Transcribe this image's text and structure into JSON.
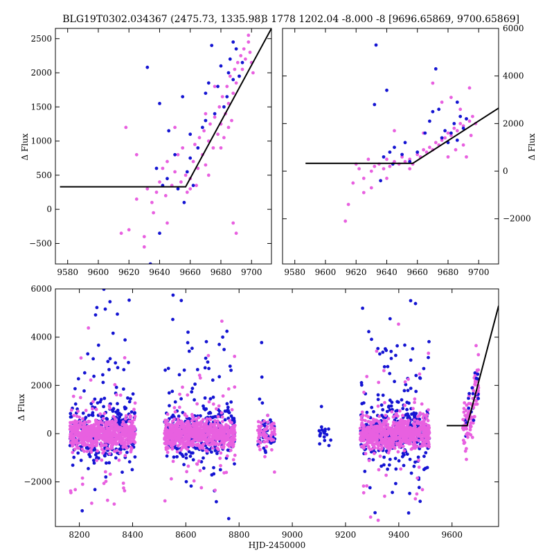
{
  "chart_data": [
    {
      "id": "zoom_left",
      "type": "scatter",
      "title": "BLG19T0302.034367 (2475.73, 1335.98)",
      "xlabel": "",
      "ylabel": "Δ Flux",
      "xlim": [
        9572,
        9713
      ],
      "ylim": [
        -800,
        2650
      ],
      "xticks": [
        9580,
        9600,
        9620,
        9640,
        9660,
        9680,
        9700
      ],
      "yticks": [
        -500,
        0,
        500,
        1000,
        1500,
        2000,
        2500
      ],
      "ytick_side": "left",
      "model_line": {
        "x": [
          9575,
          9657,
          9713
        ],
        "y": [
          330,
          330,
          2650
        ],
        "color": "#000000"
      },
      "series": [
        {
          "color": "#e860e0",
          "values": [
            [
              9620,
              -300
            ],
            [
              9625,
              150
            ],
            [
              9630,
              -400
            ],
            [
              9632,
              300
            ],
            [
              9635,
              100
            ],
            [
              9636,
              -50
            ],
            [
              9638,
              250
            ],
            [
              9640,
              400
            ],
            [
              9642,
              600
            ],
            [
              9644,
              200
            ],
            [
              9645,
              700
            ],
            [
              9648,
              350
            ],
            [
              9650,
              550
            ],
            [
              9652,
              800
            ],
            [
              9654,
              400
            ],
            [
              9655,
              900
            ],
            [
              9657,
              500
            ],
            [
              9658,
              250
            ],
            [
              9660,
              450
            ],
            [
              9662,
              700
            ],
            [
              9663,
              950
            ],
            [
              9665,
              600
            ],
            [
              9666,
              1050
            ],
            [
              9668,
              800
            ],
            [
              9669,
              1150
            ],
            [
              9670,
              650
            ],
            [
              9672,
              1000
            ],
            [
              9673,
              1250
            ],
            [
              9675,
              900
            ],
            [
              9676,
              1350
            ],
            [
              9678,
              1100
            ],
            [
              9679,
              1500
            ],
            [
              9680,
              1250
            ],
            [
              9681,
              1650
            ],
            [
              9683,
              1400
            ],
            [
              9684,
              1800
            ],
            [
              9685,
              1550
            ],
            [
              9686,
              1950
            ],
            [
              9688,
              1700
            ],
            [
              9689,
              2050
            ],
            [
              9690,
              1850
            ],
            [
              9691,
              2150
            ],
            [
              9692,
              1950
            ],
            [
              9693,
              2250
            ],
            [
              9694,
              2050
            ],
            [
              9695,
              2350
            ],
            [
              9696,
              2200
            ],
            [
              9698,
              2450
            ],
            [
              9699,
              2300
            ],
            [
              9700,
              2150
            ],
            [
              9701,
              2000
            ],
            [
              9685,
              1200
            ],
            [
              9680,
              900
            ],
            [
              9670,
              1400
            ],
            [
              9660,
              300
            ],
            [
              9645,
              -200
            ],
            [
              9630,
              -550
            ],
            [
              9688,
              -200
            ],
            [
              9690,
              -350
            ],
            [
              9615,
              -350
            ],
            [
              9618,
              1200
            ],
            [
              9625,
              800
            ],
            [
              9650,
              1200
            ],
            [
              9676,
              1800
            ],
            [
              9698,
              2550
            ],
            [
              9664,
              350
            ],
            [
              9672,
              500
            ],
            [
              9682,
              1050
            ],
            [
              9687,
              1300
            ]
          ]
        },
        {
          "color": "#1414d2",
          "values": [
            [
              9632,
              2080
            ],
            [
              9640,
              1550
            ],
            [
              9634,
              -800
            ],
            [
              9638,
              600
            ],
            [
              9642,
              350
            ],
            [
              9646,
              1150
            ],
            [
              9650,
              800
            ],
            [
              9652,
              300
            ],
            [
              9655,
              1650
            ],
            [
              9658,
              550
            ],
            [
              9660,
              1100
            ],
            [
              9662,
              350
            ],
            [
              9665,
              900
            ],
            [
              9668,
              1200
            ],
            [
              9670,
              1700
            ],
            [
              9672,
              1850
            ],
            [
              9674,
              2400
            ],
            [
              9676,
              1400
            ],
            [
              9678,
              1800
            ],
            [
              9680,
              2100
            ],
            [
              9682,
              1500
            ],
            [
              9684,
              1650
            ],
            [
              9686,
              2200
            ],
            [
              9688,
              2450
            ],
            [
              9690,
              2350
            ],
            [
              9692,
              1950
            ],
            [
              9694,
              2150
            ],
            [
              9640,
              -350
            ],
            [
              9656,
              100
            ],
            [
              9645,
              450
            ],
            [
              9660,
              750
            ],
            [
              9670,
              1300
            ],
            [
              9685,
              2000
            ],
            [
              9688,
              1900
            ]
          ]
        }
      ]
    },
    {
      "id": "zoom_right",
      "type": "scatter",
      "title": "3 1778 1202.04 -8.000 -8 [9696.65869, 9700.65869]",
      "xlabel": "",
      "ylabel": "Δ Flux",
      "xlim": [
        9572,
        9713
      ],
      "ylim": [
        -3900,
        6000
      ],
      "xticks": [
        9580,
        9600,
        9620,
        9640,
        9660,
        9680,
        9700
      ],
      "yticks": [
        -2000,
        0,
        2000,
        4000,
        6000
      ],
      "ytick_side": "right",
      "model_line": {
        "x": [
          9587,
          9657,
          9713
        ],
        "y": [
          330,
          330,
          2650
        ],
        "color": "#000000"
      },
      "series": [
        {
          "color": "#e860e0",
          "values": [
            [
              9613,
              -2100
            ],
            [
              9615,
              -1400
            ],
            [
              9618,
              -500
            ],
            [
              9620,
              300
            ],
            [
              9622,
              100
            ],
            [
              9625,
              -300
            ],
            [
              9628,
              500
            ],
            [
              9630,
              0
            ],
            [
              9632,
              200
            ],
            [
              9635,
              300
            ],
            [
              9638,
              100
            ],
            [
              9640,
              500
            ],
            [
              9642,
              200
            ],
            [
              9645,
              400
            ],
            [
              9648,
              300
            ],
            [
              9650,
              600
            ],
            [
              9652,
              400
            ],
            [
              9655,
              500
            ],
            [
              9657,
              300
            ],
            [
              9660,
              700
            ],
            [
              9662,
              600
            ],
            [
              9664,
              900
            ],
            [
              9666,
              800
            ],
            [
              9668,
              1000
            ],
            [
              9670,
              900
            ],
            [
              9672,
              1200
            ],
            [
              9674,
              1100
            ],
            [
              9676,
              1300
            ],
            [
              9678,
              1400
            ],
            [
              9680,
              1600
            ],
            [
              9682,
              1500
            ],
            [
              9684,
              1800
            ],
            [
              9686,
              1700
            ],
            [
              9688,
              2000
            ],
            [
              9690,
              1900
            ],
            [
              9692,
              2200
            ],
            [
              9694,
              2100
            ],
            [
              9696,
              2300
            ],
            [
              9698,
              2000
            ],
            [
              9685,
              900
            ],
            [
              9680,
              600
            ],
            [
              9690,
              1100
            ],
            [
              9695,
              1500
            ],
            [
              9688,
              2600
            ],
            [
              9682,
              3100
            ],
            [
              9676,
              2900
            ],
            [
              9670,
              3700
            ],
            [
              9664,
              1600
            ],
            [
              9645,
              1700
            ],
            [
              9630,
              -700
            ],
            [
              9625,
              -900
            ],
            [
              9694,
              3500
            ],
            [
              9640,
              -300
            ],
            [
              9655,
              100
            ],
            [
              9692,
              600
            ]
          ]
        },
        {
          "color": "#1414d2",
          "values": [
            [
              9633,
              5300
            ],
            [
              9640,
              3400
            ],
            [
              9632,
              2800
            ],
            [
              9638,
              600
            ],
            [
              9642,
              800
            ],
            [
              9645,
              1000
            ],
            [
              9650,
              700
            ],
            [
              9652,
              1200
            ],
            [
              9655,
              400
            ],
            [
              9660,
              800
            ],
            [
              9665,
              1600
            ],
            [
              9668,
              2100
            ],
            [
              9672,
              4300
            ],
            [
              9674,
              2600
            ],
            [
              9676,
              1400
            ],
            [
              9678,
              1700
            ],
            [
              9680,
              1200
            ],
            [
              9682,
              1600
            ],
            [
              9684,
              2000
            ],
            [
              9686,
              1300
            ],
            [
              9688,
              2300
            ],
            [
              9690,
              1800
            ],
            [
              9692,
              2200
            ],
            [
              9636,
              -400
            ],
            [
              9644,
              300
            ],
            [
              9670,
              2500
            ],
            [
              9686,
              2900
            ]
          ]
        }
      ]
    },
    {
      "id": "full",
      "type": "scatter",
      "title": "",
      "xlabel": "HJD-2450000",
      "ylabel": "Δ Flux",
      "xlim": [
        8110,
        9775
      ],
      "ylim": [
        -3850,
        6000
      ],
      "xticks": [
        8200,
        8400,
        8600,
        8800,
        9000,
        9200,
        9400,
        9600
      ],
      "yticks": [
        -2000,
        0,
        2000,
        4000,
        6000
      ],
      "ytick_side": "left",
      "model_line": {
        "x": [
          9580,
          9657,
          9775
        ],
        "y": [
          330,
          330,
          5300
        ],
        "color": "#000000"
      },
      "seasons": [
        {
          "x_range": [
            8165,
            8410
          ],
          "n": 700,
          "pink_sd": 600,
          "blue_sd": 1300
        },
        {
          "x_range": [
            8520,
            8785
          ],
          "n": 700,
          "pink_sd": 600,
          "blue_sd": 1200
        },
        {
          "x_range": [
            8870,
            8935
          ],
          "n": 70,
          "pink_sd": 500,
          "blue_sd": 900
        },
        {
          "x_range": [
            9100,
            9150
          ],
          "n": 40,
          "pink_sd": 0,
          "blue_sd": 450
        },
        {
          "x_range": [
            9255,
            9515
          ],
          "n": 700,
          "pink_sd": 600,
          "blue_sd": 1300
        },
        {
          "x_range": [
            9640,
            9700
          ],
          "n": 110,
          "pink_sd": 0,
          "blue_sd": 0
        }
      ],
      "series": [
        {
          "color": "#e860e0"
        },
        {
          "color": "#1414d2"
        }
      ]
    }
  ]
}
